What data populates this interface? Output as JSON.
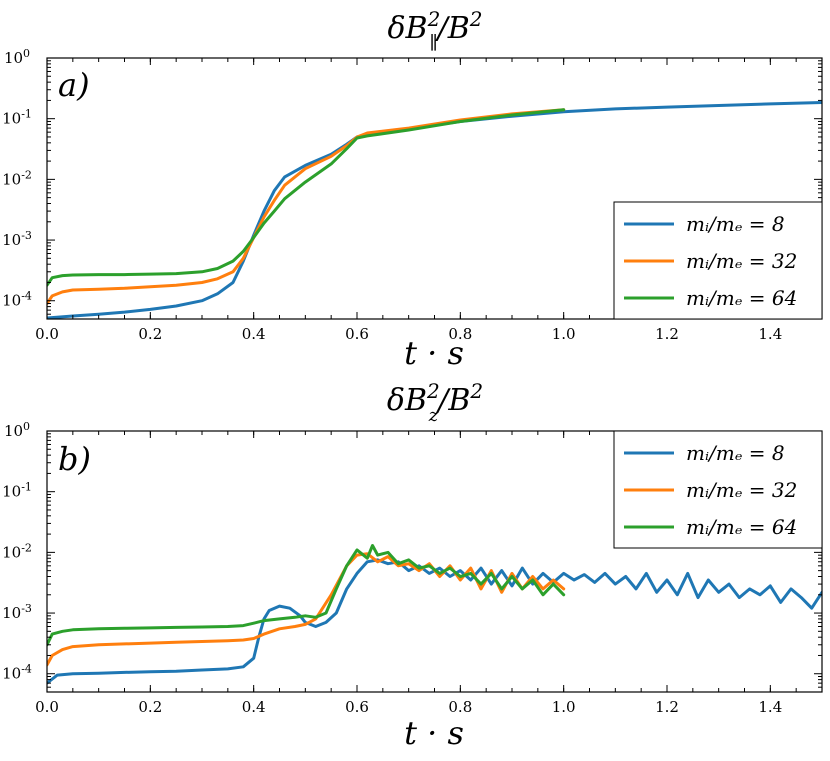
{
  "chart_data": [
    {
      "type": "line",
      "panel_label": "a)",
      "title": "δB∥²/B²",
      "xlabel": "t · s",
      "ylabel": "",
      "xlim": [
        0.0,
        1.5
      ],
      "ylim": [
        5e-05,
        1.0
      ],
      "yscale": "log",
      "xticks": [
        "0.0",
        "0.2",
        "0.4",
        "0.6",
        "0.8",
        "1.0",
        "1.2",
        "1.4"
      ],
      "yticks": [
        {
          "base": "10",
          "exp": "0"
        },
        {
          "base": "10",
          "exp": "-1"
        },
        {
          "base": "10",
          "exp": "-2"
        },
        {
          "base": "10",
          "exp": "-3"
        },
        {
          "base": "10",
          "exp": "-4"
        }
      ],
      "legend_position": "lower-right",
      "series": [
        {
          "name": "m_i/m_e = 8",
          "legend": "mᵢ/mₑ = 8",
          "color": "#1f77b4",
          "x": [
            0.0,
            0.05,
            0.1,
            0.15,
            0.2,
            0.25,
            0.3,
            0.33,
            0.36,
            0.38,
            0.4,
            0.42,
            0.44,
            0.46,
            0.5,
            0.55,
            0.58,
            0.6,
            0.62,
            0.7,
            0.8,
            0.9,
            1.0,
            1.1,
            1.2,
            1.3,
            1.4,
            1.5
          ],
          "y": [
            5.2e-05,
            5.6e-05,
            6e-05,
            6.5e-05,
            7.2e-05,
            8.2e-05,
            0.0001,
            0.00013,
            0.0002,
            0.00045,
            0.0012,
            0.003,
            0.0065,
            0.011,
            0.017,
            0.026,
            0.038,
            0.05,
            0.055,
            0.068,
            0.09,
            0.11,
            0.13,
            0.145,
            0.155,
            0.165,
            0.175,
            0.185
          ]
        },
        {
          "name": "m_i/m_e = 32",
          "legend": "mᵢ/mₑ = 32",
          "color": "#ff7f0e",
          "x": [
            0.0,
            0.01,
            0.03,
            0.05,
            0.1,
            0.15,
            0.2,
            0.25,
            0.3,
            0.33,
            0.36,
            0.38,
            0.4,
            0.42,
            0.44,
            0.46,
            0.5,
            0.55,
            0.58,
            0.6,
            0.62,
            0.7,
            0.8,
            0.9,
            1.0
          ],
          "y": [
            9e-05,
            0.00012,
            0.00014,
            0.00015,
            0.000155,
            0.00016,
            0.00017,
            0.00018,
            0.0002,
            0.00023,
            0.0003,
            0.0005,
            0.0011,
            0.0024,
            0.0045,
            0.008,
            0.015,
            0.024,
            0.036,
            0.05,
            0.058,
            0.07,
            0.095,
            0.12,
            0.14
          ]
        },
        {
          "name": "m_i/m_e = 64",
          "legend": "mᵢ/mₑ = 64",
          "color": "#2ca02c",
          "x": [
            0.0,
            0.01,
            0.03,
            0.05,
            0.1,
            0.15,
            0.2,
            0.25,
            0.3,
            0.33,
            0.36,
            0.38,
            0.4,
            0.42,
            0.44,
            0.46,
            0.5,
            0.55,
            0.58,
            0.6,
            0.62,
            0.7,
            0.8,
            0.9,
            1.0
          ],
          "y": [
            0.00018,
            0.00024,
            0.00026,
            0.000265,
            0.00027,
            0.00027,
            0.000275,
            0.00028,
            0.0003,
            0.00034,
            0.00045,
            0.00065,
            0.0011,
            0.0019,
            0.003,
            0.0048,
            0.009,
            0.018,
            0.032,
            0.048,
            0.052,
            0.065,
            0.09,
            0.115,
            0.14
          ]
        }
      ]
    },
    {
      "type": "line",
      "panel_label": "b)",
      "title": "δBz²/B²",
      "xlabel": "t · s",
      "ylabel": "",
      "xlim": [
        0.0,
        1.5
      ],
      "ylim": [
        5e-05,
        1.0
      ],
      "yscale": "log",
      "xticks": [
        "0.0",
        "0.2",
        "0.4",
        "0.6",
        "0.8",
        "1.0",
        "1.2",
        "1.4"
      ],
      "yticks": [
        {
          "base": "10",
          "exp": "0"
        },
        {
          "base": "10",
          "exp": "-1"
        },
        {
          "base": "10",
          "exp": "-2"
        },
        {
          "base": "10",
          "exp": "-3"
        },
        {
          "base": "10",
          "exp": "-4"
        }
      ],
      "legend_position": "upper-right",
      "series": [
        {
          "name": "m_i/m_e = 8",
          "legend": "mᵢ/mₑ = 8",
          "color": "#1f77b4",
          "x": [
            0.0,
            0.02,
            0.05,
            0.1,
            0.15,
            0.2,
            0.25,
            0.3,
            0.35,
            0.38,
            0.4,
            0.41,
            0.42,
            0.43,
            0.45,
            0.47,
            0.49,
            0.5,
            0.52,
            0.54,
            0.56,
            0.58,
            0.6,
            0.62,
            0.64,
            0.66,
            0.68,
            0.7,
            0.72,
            0.74,
            0.76,
            0.78,
            0.8,
            0.82,
            0.84,
            0.86,
            0.88,
            0.9,
            0.92,
            0.94,
            0.96,
            0.98,
            1.0,
            1.02,
            1.04,
            1.06,
            1.08,
            1.1,
            1.12,
            1.14,
            1.16,
            1.18,
            1.2,
            1.22,
            1.24,
            1.26,
            1.28,
            1.3,
            1.32,
            1.34,
            1.36,
            1.38,
            1.4,
            1.42,
            1.44,
            1.46,
            1.48,
            1.5
          ],
          "y": [
            7e-05,
            9.5e-05,
            0.0001,
            0.000102,
            0.000105,
            0.000108,
            0.00011,
            0.000115,
            0.00012,
            0.00013,
            0.00018,
            0.0004,
            0.0008,
            0.0011,
            0.0013,
            0.0012,
            0.0009,
            0.0007,
            0.0006,
            0.0007,
            0.001,
            0.0025,
            0.0045,
            0.007,
            0.0075,
            0.0065,
            0.007,
            0.005,
            0.006,
            0.0045,
            0.0055,
            0.004,
            0.005,
            0.0035,
            0.0055,
            0.003,
            0.005,
            0.0028,
            0.0055,
            0.003,
            0.0045,
            0.0032,
            0.0045,
            0.0035,
            0.0043,
            0.0032,
            0.0045,
            0.003,
            0.004,
            0.0025,
            0.0045,
            0.0022,
            0.0035,
            0.002,
            0.0045,
            0.0018,
            0.0035,
            0.0022,
            0.003,
            0.0018,
            0.0025,
            0.002,
            0.0028,
            0.0015,
            0.0025,
            0.0018,
            0.0012,
            0.0022
          ]
        },
        {
          "name": "m_i/m_e = 32",
          "legend": "mᵢ/mₑ = 32",
          "color": "#ff7f0e",
          "x": [
            0.0,
            0.01,
            0.03,
            0.05,
            0.1,
            0.15,
            0.2,
            0.25,
            0.3,
            0.35,
            0.38,
            0.4,
            0.42,
            0.45,
            0.48,
            0.5,
            0.52,
            0.55,
            0.58,
            0.6,
            0.62,
            0.64,
            0.66,
            0.68,
            0.7,
            0.72,
            0.74,
            0.76,
            0.78,
            0.8,
            0.82,
            0.84,
            0.86,
            0.88,
            0.9,
            0.92,
            0.94,
            0.96,
            0.98,
            1.0
          ],
          "y": [
            0.00014,
            0.0002,
            0.00025,
            0.00028,
            0.0003,
            0.00031,
            0.00032,
            0.00033,
            0.00034,
            0.00035,
            0.00036,
            0.00038,
            0.00045,
            0.00055,
            0.0006,
            0.00065,
            0.0008,
            0.002,
            0.006,
            0.009,
            0.0095,
            0.007,
            0.0085,
            0.006,
            0.0065,
            0.005,
            0.0065,
            0.004,
            0.006,
            0.0035,
            0.0055,
            0.0025,
            0.005,
            0.0022,
            0.0045,
            0.0025,
            0.004,
            0.0025,
            0.0035,
            0.0025
          ]
        },
        {
          "name": "m_i/m_e = 64",
          "legend": "mᵢ/mₑ = 64",
          "color": "#2ca02c",
          "x": [
            0.0,
            0.01,
            0.03,
            0.05,
            0.1,
            0.15,
            0.2,
            0.25,
            0.3,
            0.35,
            0.38,
            0.4,
            0.42,
            0.45,
            0.48,
            0.5,
            0.52,
            0.54,
            0.56,
            0.58,
            0.6,
            0.62,
            0.63,
            0.64,
            0.66,
            0.68,
            0.7,
            0.72,
            0.74,
            0.76,
            0.78,
            0.8,
            0.82,
            0.84,
            0.86,
            0.88,
            0.9,
            0.92,
            0.94,
            0.96,
            0.98,
            1.0
          ],
          "y": [
            0.0003,
            0.00045,
            0.0005,
            0.00053,
            0.00055,
            0.00056,
            0.00057,
            0.00058,
            0.00059,
            0.0006,
            0.00062,
            0.00068,
            0.00075,
            0.0008,
            0.00085,
            0.0009,
            0.00085,
            0.001,
            0.0025,
            0.006,
            0.011,
            0.008,
            0.013,
            0.009,
            0.01,
            0.0065,
            0.0075,
            0.0055,
            0.006,
            0.0045,
            0.0055,
            0.004,
            0.0045,
            0.003,
            0.0045,
            0.0025,
            0.004,
            0.0025,
            0.0035,
            0.002,
            0.003,
            0.002
          ]
        }
      ]
    }
  ]
}
